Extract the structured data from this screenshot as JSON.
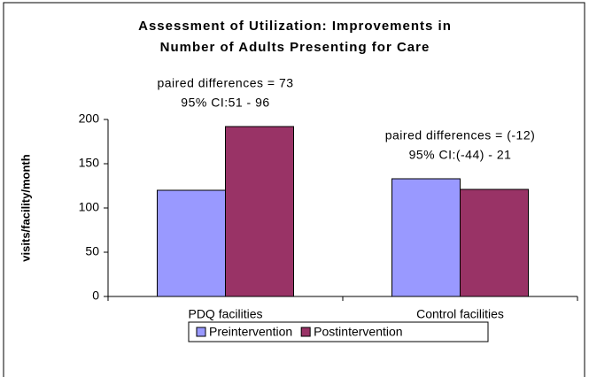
{
  "chart_data": {
    "type": "bar",
    "title": [
      "Assessment of Utilization: Improvements in",
      "Number of Adults Presenting for Care"
    ],
    "ylabel": "visits/facility/month",
    "categories": [
      "PDQ facilities",
      "Control facilities"
    ],
    "series": [
      {
        "name": "Preintervention",
        "color": "#9999ff",
        "values": [
          120,
          133
        ]
      },
      {
        "name": "Postintervention",
        "color": "#993366",
        "values": [
          192,
          121
        ]
      }
    ],
    "annotations": [
      [
        "paired differences = 73",
        "95% CI:51 - 96"
      ],
      [
        "paired differences = (-12)",
        "95% CI:(-44) - 21"
      ]
    ],
    "ylim": [
      0,
      200
    ],
    "yticks": [
      0,
      50,
      100,
      150,
      200
    ],
    "grid": false,
    "legend": "bottom"
  }
}
